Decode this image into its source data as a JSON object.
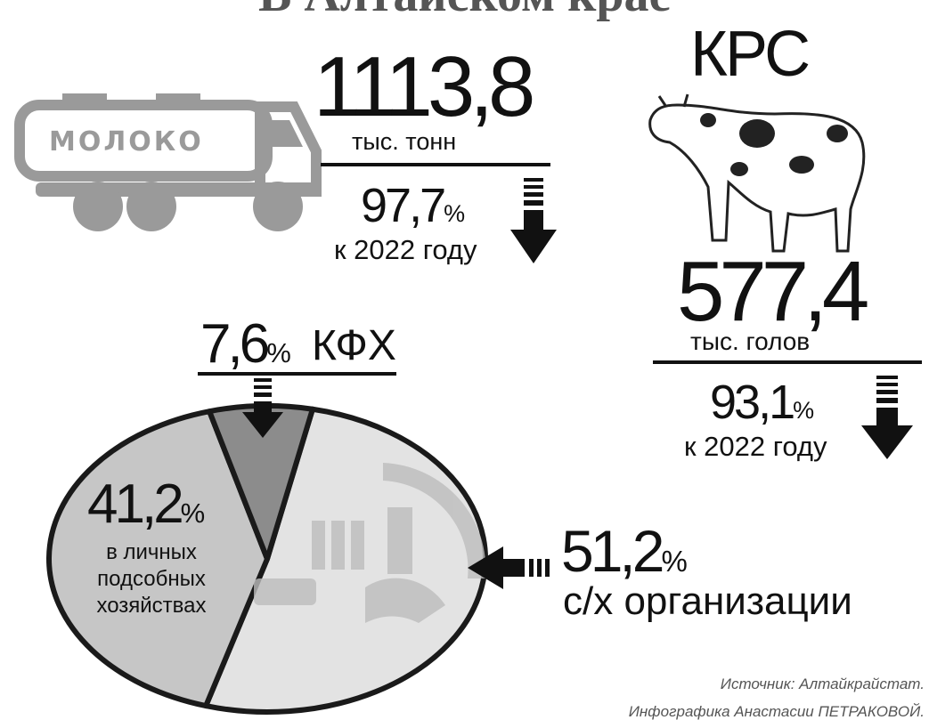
{
  "title": "В Алтайском крае",
  "milk": {
    "truck_label": "МОЛОКО",
    "value": "1113,8",
    "unit": "тыс. тонн",
    "change": "97,7%",
    "change_note": "к 2022 году"
  },
  "cattle": {
    "title": "КРС",
    "value": "577,4",
    "unit": "тыс. голов",
    "change": "93,1%",
    "change_note": "к 2022 году"
  },
  "chart_data": {
    "type": "pie",
    "categories": [
      "с/х организации",
      "в личных подсобных хозяйствах",
      "КФХ"
    ],
    "values": [
      51.2,
      41.2,
      7.6
    ],
    "value_labels": [
      "51,2%",
      "41,2%",
      "7,6%"
    ],
    "colors": [
      "#e3e3e3",
      "#c6c6c6",
      "#8c8c8c"
    ]
  },
  "source": "Источник: Алтайкрайстат.",
  "credit": "Инфографика Анастасии ПЕТРАКОВОЙ."
}
